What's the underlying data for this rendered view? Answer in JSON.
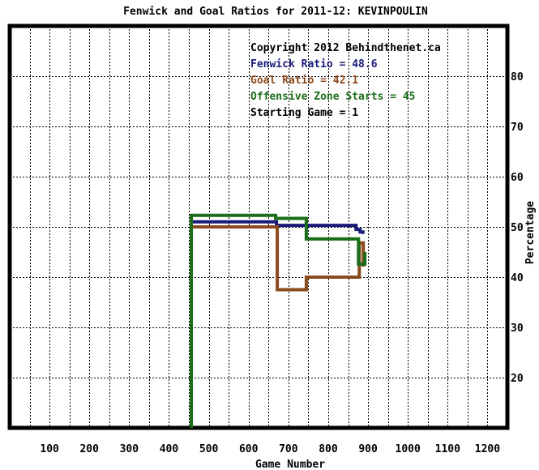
{
  "chart_data": {
    "type": "line",
    "title": "Fenwick and Goal Ratios for 2011-12: KEVINPOULIN",
    "xlabel": "Game Number",
    "ylabel": "Percentage",
    "xlim": [
      0,
      1250
    ],
    "ylim": [
      10,
      90
    ],
    "x_ticks": [
      100,
      200,
      300,
      400,
      500,
      600,
      700,
      800,
      900,
      1000,
      1100,
      1200
    ],
    "y_ticks": [
      20,
      30,
      40,
      50,
      60,
      70,
      80
    ],
    "grid": true,
    "legend_position": "top-right",
    "annotations": [
      {
        "text": "Copyright 2012 Behindthenet.ca",
        "color": "#000000"
      },
      {
        "text": "Fenwick Ratio = 48.6",
        "color": "#1a1a7a"
      },
      {
        "text": "Goal Ratio = 42.1",
        "color": "#8b4a1c"
      },
      {
        "text": "Offensive Zone Starts = 45",
        "color": "#1a6e1a"
      },
      {
        "text": "Starting Game = 1",
        "color": "#000000"
      }
    ],
    "series": [
      {
        "color": "#1a1a7a",
        "points": [
          [
            458,
            51
          ],
          [
            670,
            51
          ],
          [
            670,
            50.3
          ],
          [
            745,
            50.3
          ],
          [
            745,
            50.3
          ],
          [
            870,
            50.3
          ],
          [
            870,
            49.5
          ],
          [
            880,
            49.5
          ],
          [
            880,
            49
          ],
          [
            887,
            49
          ],
          [
            887,
            48.6
          ]
        ]
      },
      {
        "color": "#8b4a1c",
        "points": [
          [
            458,
            50
          ],
          [
            672,
            50
          ],
          [
            672,
            37.5
          ],
          [
            745,
            37.5
          ],
          [
            745,
            40
          ],
          [
            878,
            40
          ],
          [
            878,
            46.8
          ],
          [
            888,
            46.8
          ],
          [
            888,
            42.1
          ]
        ]
      },
      {
        "color": "#1a6e1a",
        "points": [
          [
            456,
            10
          ],
          [
            456,
            52.3
          ],
          [
            668,
            52.3
          ],
          [
            668,
            51.7
          ],
          [
            745,
            51.7
          ],
          [
            745,
            47.6
          ],
          [
            876,
            47.6
          ],
          [
            876,
            42.6
          ],
          [
            892,
            42.6
          ],
          [
            892,
            45
          ]
        ]
      }
    ]
  }
}
